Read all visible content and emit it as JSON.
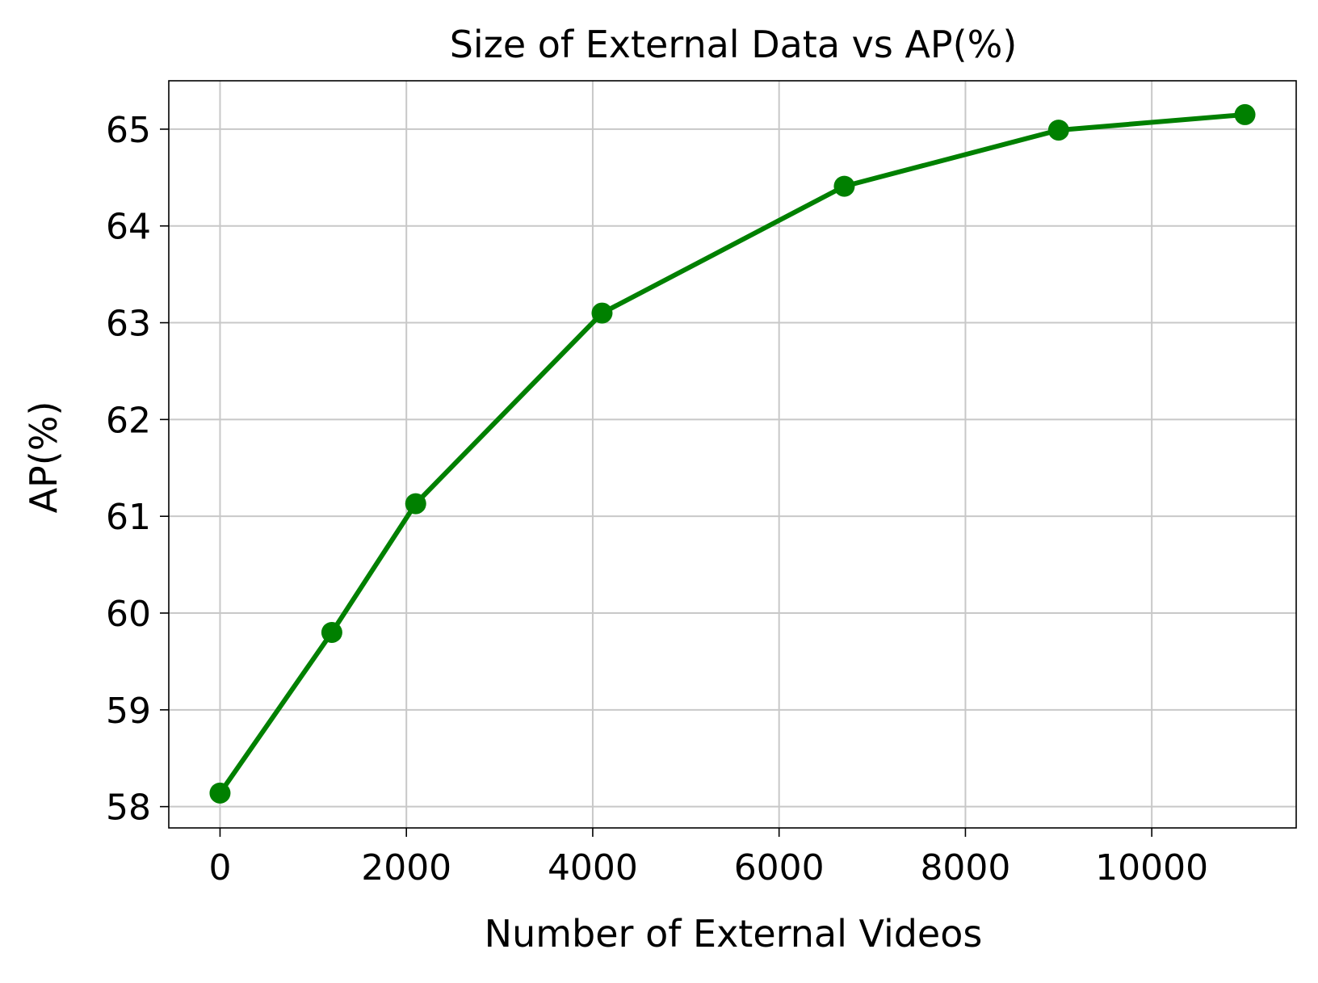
{
  "chart_data": {
    "type": "line",
    "title": "Size of External Data vs AP(%)",
    "xlabel": "Number of External Videos",
    "ylabel": "AP(%)",
    "xlim": [
      -550,
      11550
    ],
    "ylim": [
      57.78,
      65.5
    ],
    "x_ticks": [
      0,
      2000,
      4000,
      6000,
      8000,
      10000
    ],
    "y_ticks": [
      58,
      59,
      60,
      61,
      62,
      63,
      64,
      65
    ],
    "grid": true,
    "series": [
      {
        "color": "#008000",
        "marker": "circle",
        "x": [
          0,
          1200,
          2100,
          4100,
          6700,
          9000,
          11000
        ],
        "y": [
          58.14,
          59.8,
          61.13,
          63.1,
          64.41,
          64.99,
          65.15
        ]
      }
    ],
    "colors": {
      "line": "#008000",
      "grid": "#c8c8c8",
      "axes": "#000000"
    }
  }
}
